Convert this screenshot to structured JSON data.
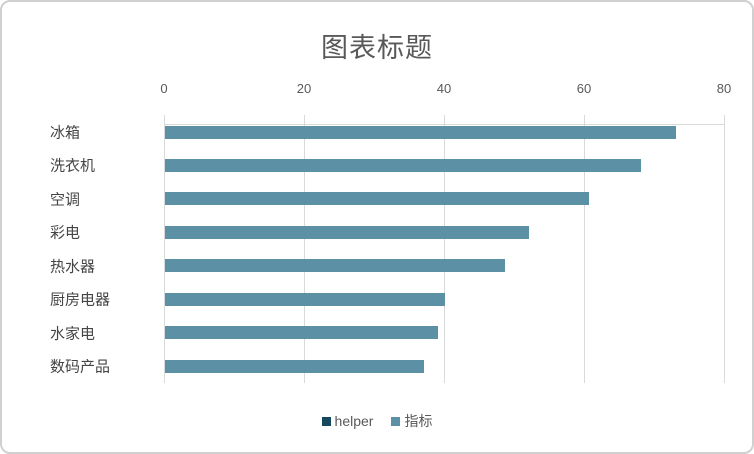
{
  "chart_data": {
    "type": "bar",
    "orientation": "horizontal",
    "title": "图表标题",
    "categories": [
      "冰箱",
      "洗衣机",
      "空调",
      "彩电",
      "热水器",
      "厨房电器",
      "水家电",
      "数码产品"
    ],
    "series": [
      {
        "name": "helper",
        "color": "#15485c",
        "values": [
          0,
          0,
          0,
          0,
          0,
          0,
          0,
          0
        ]
      },
      {
        "name": "指标",
        "color": "#5c91a5",
        "values": [
          73,
          68,
          60.5,
          52,
          48.5,
          40,
          39,
          37
        ]
      }
    ],
    "x_axis": {
      "min": 0,
      "max": 80,
      "ticks": [
        0,
        20,
        40,
        60,
        80
      ],
      "position": "top"
    },
    "grid": true,
    "legend_position": "bottom",
    "colors": {
      "gridline": "#d9d9d9",
      "axis_text": "#595959",
      "category_text": "#454545",
      "title_text": "#595959",
      "frame_border": "#d0d0d0"
    }
  }
}
